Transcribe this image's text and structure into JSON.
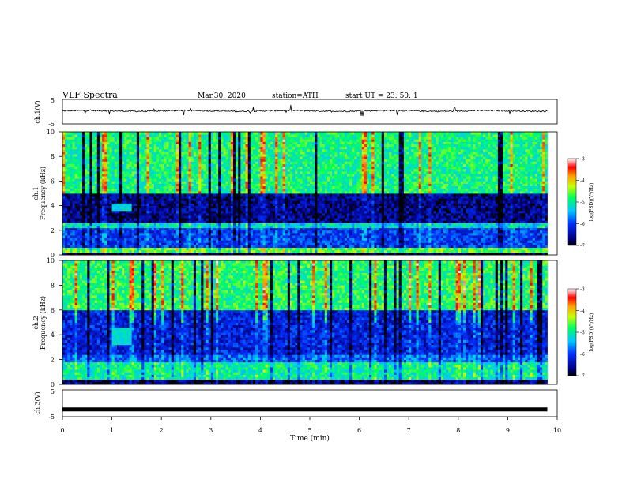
{
  "header": {
    "title": "VLF  Spectra",
    "date": "Mar.30, 2020",
    "station": "station=ATH",
    "start": "start  UT  =    23: 50: 1"
  },
  "chart_data": [
    {
      "type": "line",
      "panel": "ch1-waveform",
      "ylabel": "ch.1(V)",
      "ylim": [
        -5,
        5
      ],
      "ytick_labels": [
        "5",
        "-5"
      ],
      "xlim": [
        0,
        10
      ],
      "trace_color": "#000000",
      "description_values": {
        "mean_level_v": 0.3,
        "typical_range_v": [
          -0.6,
          1.0
        ]
      }
    },
    {
      "type": "heatmap",
      "panel": "ch1-spectrogram",
      "ylabel": [
        "ch.1",
        "Frequency  (kHz)"
      ],
      "ylim": [
        0,
        10
      ],
      "ytick_labels": [
        "0",
        "2",
        "4",
        "6",
        "8",
        "10"
      ],
      "xlim": [
        0,
        9.8
      ],
      "colorbar": {
        "label": "log(PSD)(V²/Hz)",
        "range": [
          -7,
          -3
        ],
        "tick_labels": [
          "-3",
          "-4",
          "-5",
          "-6",
          "-7"
        ]
      },
      "bands_khz": [
        {
          "from": 0.0,
          "to": 0.3,
          "level": -6.8
        },
        {
          "from": 0.3,
          "to": 0.6,
          "level": -4.6
        },
        {
          "from": 0.6,
          "to": 2.3,
          "level": -6.0
        },
        {
          "from": 2.3,
          "to": 2.6,
          "level": -5.2
        },
        {
          "from": 2.6,
          "to": 5.0,
          "level": -6.6
        },
        {
          "from": 5.0,
          "to": 10.0,
          "level": -4.9
        }
      ],
      "emission_patch": {
        "t_min": [
          1.0,
          1.4
        ],
        "f_khz": [
          3.6,
          4.2
        ],
        "level": -5.3
      }
    },
    {
      "type": "heatmap",
      "panel": "ch2-spectrogram",
      "ylabel": [
        "ch.2",
        "Frequency  (kHz)"
      ],
      "ylim": [
        0,
        10
      ],
      "ytick_labels": [
        "0",
        "2",
        "4",
        "6",
        "8",
        "10"
      ],
      "xlim": [
        0,
        9.8
      ],
      "colorbar": {
        "label": "log(PSD)(V²/Hz)",
        "range": [
          -7,
          -3
        ],
        "tick_labels": [
          "-3",
          "-4",
          "-5",
          "-6",
          "-7"
        ]
      },
      "bands_khz": [
        {
          "from": 0.0,
          "to": 0.5,
          "level": -6.7
        },
        {
          "from": 0.5,
          "to": 1.8,
          "level": -5.0
        },
        {
          "from": 1.8,
          "to": 2.5,
          "level": -5.8
        },
        {
          "from": 2.5,
          "to": 6.0,
          "level": -6.2
        },
        {
          "from": 6.0,
          "to": 10.0,
          "level": -4.8
        }
      ],
      "emission_patch": {
        "t_min": [
          1.0,
          1.4
        ],
        "f_khz": [
          3.2,
          4.6
        ],
        "level": -5.2
      }
    },
    {
      "type": "line",
      "panel": "ch3-waveform",
      "ylabel": "ch.3(V)",
      "ylim": [
        -5,
        5
      ],
      "ytick_labels": [
        "5",
        "-5"
      ],
      "xlim": [
        0,
        10
      ],
      "xlabel": "Time  (min)",
      "xtick_labels": [
        "0",
        "1",
        "2",
        "3",
        "4",
        "5",
        "6",
        "7",
        "8",
        "9",
        "10"
      ],
      "trace_color": "#000000",
      "description_values": {
        "constant_level_v": -2.3
      }
    }
  ]
}
